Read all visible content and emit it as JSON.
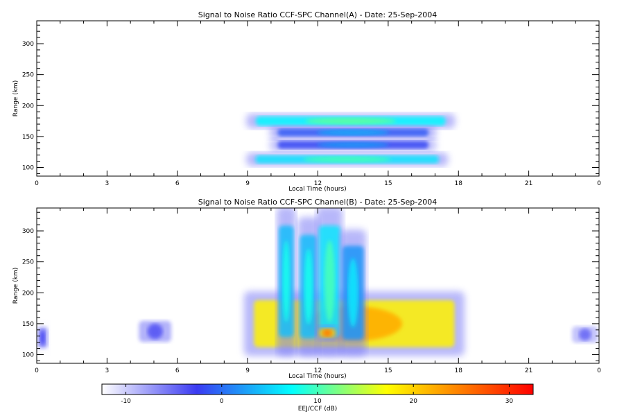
{
  "chart_data": [
    {
      "type": "heatmap",
      "title": "Signal to Noise Ratio CCF-SPC Channel(A) - Date: 25-Sep-2004",
      "xlabel": "Local Time (hours)",
      "ylabel": "Range (km)",
      "xlim": [
        0,
        24
      ],
      "ylim": [
        86,
        337
      ],
      "x_ticks": [
        "0",
        "3",
        "6",
        "9",
        "12",
        "15",
        "18",
        "21",
        "0"
      ],
      "y_ticks": [
        100,
        150,
        200,
        250,
        300
      ],
      "echo_regions": [
        {
          "feature": "upper echo layer",
          "x": [
            9.0,
            17.8
          ],
          "y": [
            165,
            185
          ],
          "peak_snr_db": 11
        },
        {
          "feature": "mid echo layer",
          "x": [
            10.0,
            17.0
          ],
          "y": [
            148,
            165
          ],
          "peak_snr_db": 3
        },
        {
          "feature": "lower mid echo layer",
          "x": [
            10.0,
            17.0
          ],
          "y": [
            128,
            145
          ],
          "peak_snr_db": 2
        },
        {
          "feature": "lower echo layer",
          "x": [
            9.0,
            17.5
          ],
          "y": [
            104,
            122
          ],
          "peak_snr_db": 10
        }
      ]
    },
    {
      "type": "heatmap",
      "title": "Signal to Noise Ratio CCF-SPC Channel(B) - Date: 25-Sep-2004",
      "xlabel": "Local Time (hours)",
      "ylabel": "Range (km)",
      "xlim": [
        0,
        24
      ],
      "ylim": [
        86,
        337
      ],
      "x_ticks": [
        "0",
        "3",
        "6",
        "9",
        "12",
        "15",
        "18",
        "21",
        "0"
      ],
      "y_ticks": [
        100,
        150,
        200,
        250,
        300
      ],
      "echo_regions": [
        {
          "feature": "main daytime echo",
          "x": [
            8.9,
            18.2
          ],
          "y": [
            100,
            200
          ],
          "peak_snr_db": 22
        },
        {
          "feature": "plume",
          "x": [
            10.3,
            11.0
          ],
          "y": [
            100,
            337
          ],
          "peak_snr_db": 8
        },
        {
          "feature": "plume",
          "x": [
            11.2,
            12.0
          ],
          "y": [
            100,
            320
          ],
          "peak_snr_db": 8
        },
        {
          "feature": "plume",
          "x": [
            12.0,
            13.0
          ],
          "y": [
            100,
            337
          ],
          "peak_snr_db": 10
        },
        {
          "feature": "plume",
          "x": [
            13.0,
            14.0
          ],
          "y": [
            100,
            300
          ],
          "peak_snr_db": 6
        },
        {
          "feature": "intensity maximum",
          "x": [
            12.0,
            12.8
          ],
          "y": [
            125,
            145
          ],
          "peak_snr_db": 25
        },
        {
          "feature": "nighttime echo patch",
          "x": [
            4.3,
            5.8
          ],
          "y": [
            115,
            160
          ],
          "peak_snr_db": -4
        },
        {
          "feature": "nighttime echo patch",
          "x": [
            0.0,
            0.5
          ],
          "y": [
            105,
            150
          ],
          "peak_snr_db": -3
        },
        {
          "feature": "nighttime echo patch",
          "x": [
            22.8,
            24.0
          ],
          "y": [
            115,
            150
          ],
          "peak_snr_db": -5
        }
      ]
    }
  ],
  "colorbar": {
    "label": "EEJ/CCF (dB)",
    "range": [
      -12.5,
      32.5
    ],
    "ticks": [
      -10,
      0,
      10,
      20,
      30
    ],
    "tick_labels": [
      "-10",
      "0",
      "10",
      "20",
      "30"
    ],
    "colors": [
      "#ffffff",
      "#3a3af2",
      "#00ffff",
      "#ffff00",
      "#ff0000"
    ]
  }
}
